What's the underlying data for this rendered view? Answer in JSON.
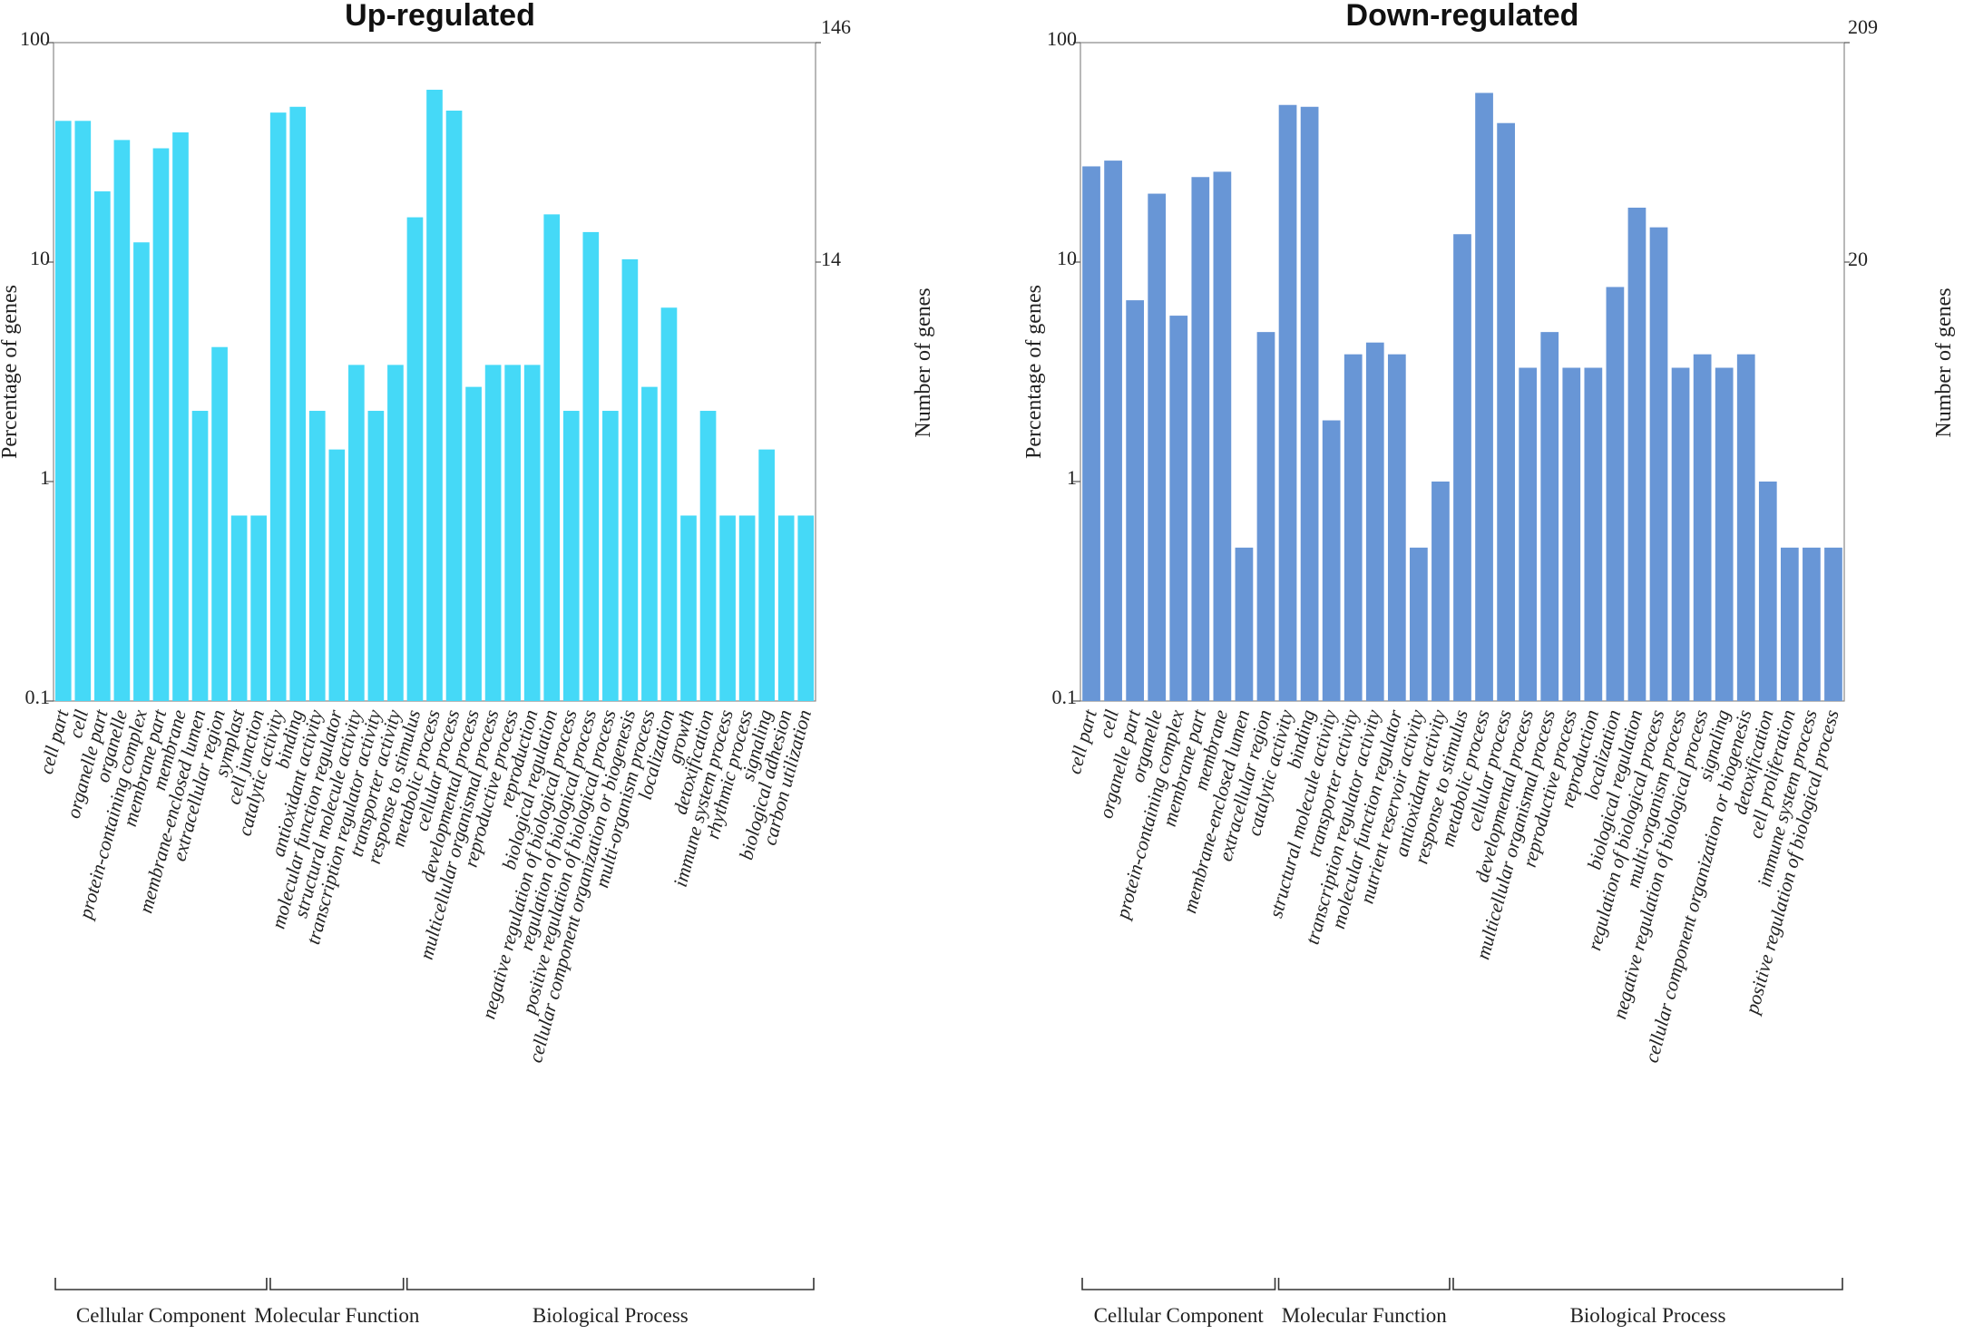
{
  "chart_data": [
    {
      "type": "bar",
      "title": "Up-regulated",
      "color": "#45d9f7",
      "ylabel": "Percentage of genes",
      "y2label": "Number of genes",
      "yscale": "log",
      "ylim": [
        0.1,
        100
      ],
      "yticks": [
        "0.1",
        "1",
        "10",
        "100"
      ],
      "y2ticks": [
        "14",
        "146"
      ],
      "categories": [
        "cell part",
        "cell",
        "organelle part",
        "organelle",
        "protein-containing complex",
        "membrane part",
        "membrane",
        "membrane-enclosed lumen",
        "extracellular region",
        "symplast",
        "cell junction",
        "catalytic activity",
        "binding",
        "antioxidant activity",
        "molecular function regulator",
        "structural molecule activity",
        "transcription regulator activity",
        "transporter activity",
        "response to stimulus",
        "metabolic process",
        "cellular process",
        "developmental process",
        "multicellular organismal process",
        "reproductive process",
        "reproduction",
        "biological regulation",
        "negative regulation of biological process",
        "regulation of biological process",
        "positive regulation of biological process",
        "cellular component organization or biogenesis",
        "multi-organism process",
        "localization",
        "growth",
        "detoxification",
        "immune system process",
        "rhythmic process",
        "signaling",
        "biological adhesion",
        "carbon utilization"
      ],
      "values": [
        44,
        44,
        21,
        36,
        12.3,
        33,
        39,
        2.1,
        4.1,
        0.7,
        0.7,
        48,
        51,
        2.1,
        1.4,
        3.4,
        2.1,
        3.4,
        16,
        61,
        49,
        2.7,
        3.4,
        3.4,
        3.4,
        16.5,
        2.1,
        13.7,
        2.1,
        10.3,
        2.7,
        6.2,
        0.7,
        2.1,
        0.7,
        0.7,
        1.4,
        0.7,
        0.7
      ],
      "groups": [
        {
          "label": "Cellular Component",
          "start": 0,
          "end": 10
        },
        {
          "label": "Molecular Function",
          "start": 11,
          "end": 17
        },
        {
          "label": "Biological Process",
          "start": 18,
          "end": 38
        }
      ]
    },
    {
      "type": "bar",
      "title": "Down-regulated",
      "color": "#6896d6",
      "ylabel": "Percentage of genes",
      "y2label": "Number of genes",
      "yscale": "log",
      "ylim": [
        0.1,
        100
      ],
      "yticks": [
        "0.1",
        "1",
        "10",
        "100"
      ],
      "y2ticks": [
        "20",
        "209"
      ],
      "categories": [
        "cell part",
        "cell",
        "organelle part",
        "organelle",
        "protein-containing complex",
        "membrane part",
        "membrane",
        "membrane-enclosed lumen",
        "extracellular region",
        "catalytic activity",
        "binding",
        "structural molecule activity",
        "transporter activity",
        "transcription regulator activity",
        "molecular function regulator",
        "nutrient reservoir activity",
        "antioxidant activity",
        "response to stimulus",
        "metabolic process",
        "cellular process",
        "developmental process",
        "multicellular organismal process",
        "reproductive process",
        "reproduction",
        "localization",
        "biological regulation",
        "regulation of biological process",
        "multi-organism process",
        "negative regulation of biological process",
        "signaling",
        "cellular component organization or biogenesis",
        "detoxification",
        "cell proliferation",
        "immune system process",
        "positive regulation of biological process"
      ],
      "values": [
        27.3,
        29,
        6.7,
        20.5,
        5.7,
        24.4,
        25.8,
        0.5,
        4.8,
        52,
        51,
        1.9,
        3.8,
        4.3,
        3.8,
        0.5,
        1,
        13.4,
        59,
        43,
        3.3,
        4.8,
        3.3,
        3.3,
        7.7,
        17.7,
        14.4,
        3.3,
        3.8,
        3.3,
        3.8,
        1,
        0.5,
        0.5,
        0.5
      ],
      "groups": [
        {
          "label": "Cellular Component",
          "start": 0,
          "end": 8
        },
        {
          "label": "Molecular Function",
          "start": 9,
          "end": 16
        },
        {
          "label": "Biological Process",
          "start": 17,
          "end": 34
        }
      ]
    }
  ]
}
